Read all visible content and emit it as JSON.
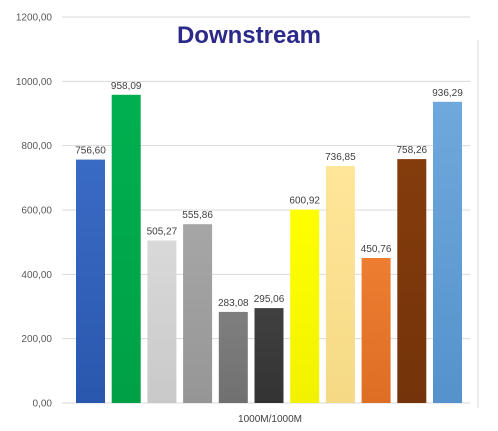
{
  "chart_data": {
    "type": "bar",
    "title": "Downstream",
    "xlabel": "",
    "ylabel": "",
    "categories": [
      "1000M/1000M"
    ],
    "ylim": [
      0,
      1200
    ],
    "yticks": [
      "0,00",
      "200,00",
      "400,00",
      "600,00",
      "800,00",
      "1000,00",
      "1200,00"
    ],
    "grid": true,
    "legend": "none",
    "series": [
      {
        "values": [
          756.6
        ],
        "label": "756,60",
        "color": "#3A6BC4",
        "color_dark": "#2A57AE"
      },
      {
        "values": [
          958.09
        ],
        "label": "958,09",
        "color": "#00B050",
        "color_dark": "#00A046"
      },
      {
        "values": [
          505.27
        ],
        "label": "505,27",
        "color": "#D9D9D9",
        "color_dark": "#C9C9C9"
      },
      {
        "values": [
          555.86
        ],
        "label": "555,86",
        "color": "#A6A6A6",
        "color_dark": "#969696"
      },
      {
        "values": [
          283.08
        ],
        "label": "283,08",
        "color": "#7F7F7F",
        "color_dark": "#707070"
      },
      {
        "values": [
          295.06
        ],
        "label": "295,06",
        "color": "#404040",
        "color_dark": "#333333"
      },
      {
        "values": [
          600.92
        ],
        "label": "600,92",
        "color": "#FFFF00",
        "color_dark": "#F2F200"
      },
      {
        "values": [
          736.85
        ],
        "label": "736,85",
        "color": "#FFE699",
        "color_dark": "#F5D985"
      },
      {
        "values": [
          450.76
        ],
        "label": "450,76",
        "color": "#ED7D31",
        "color_dark": "#DD6E24"
      },
      {
        "values": [
          758.26
        ],
        "label": "758,26",
        "color": "#843C0C",
        "color_dark": "#74330A"
      },
      {
        "values": [
          936.29
        ],
        "label": "936,29",
        "color": "#6FA8DC",
        "color_dark": "#5592CC"
      }
    ]
  }
}
